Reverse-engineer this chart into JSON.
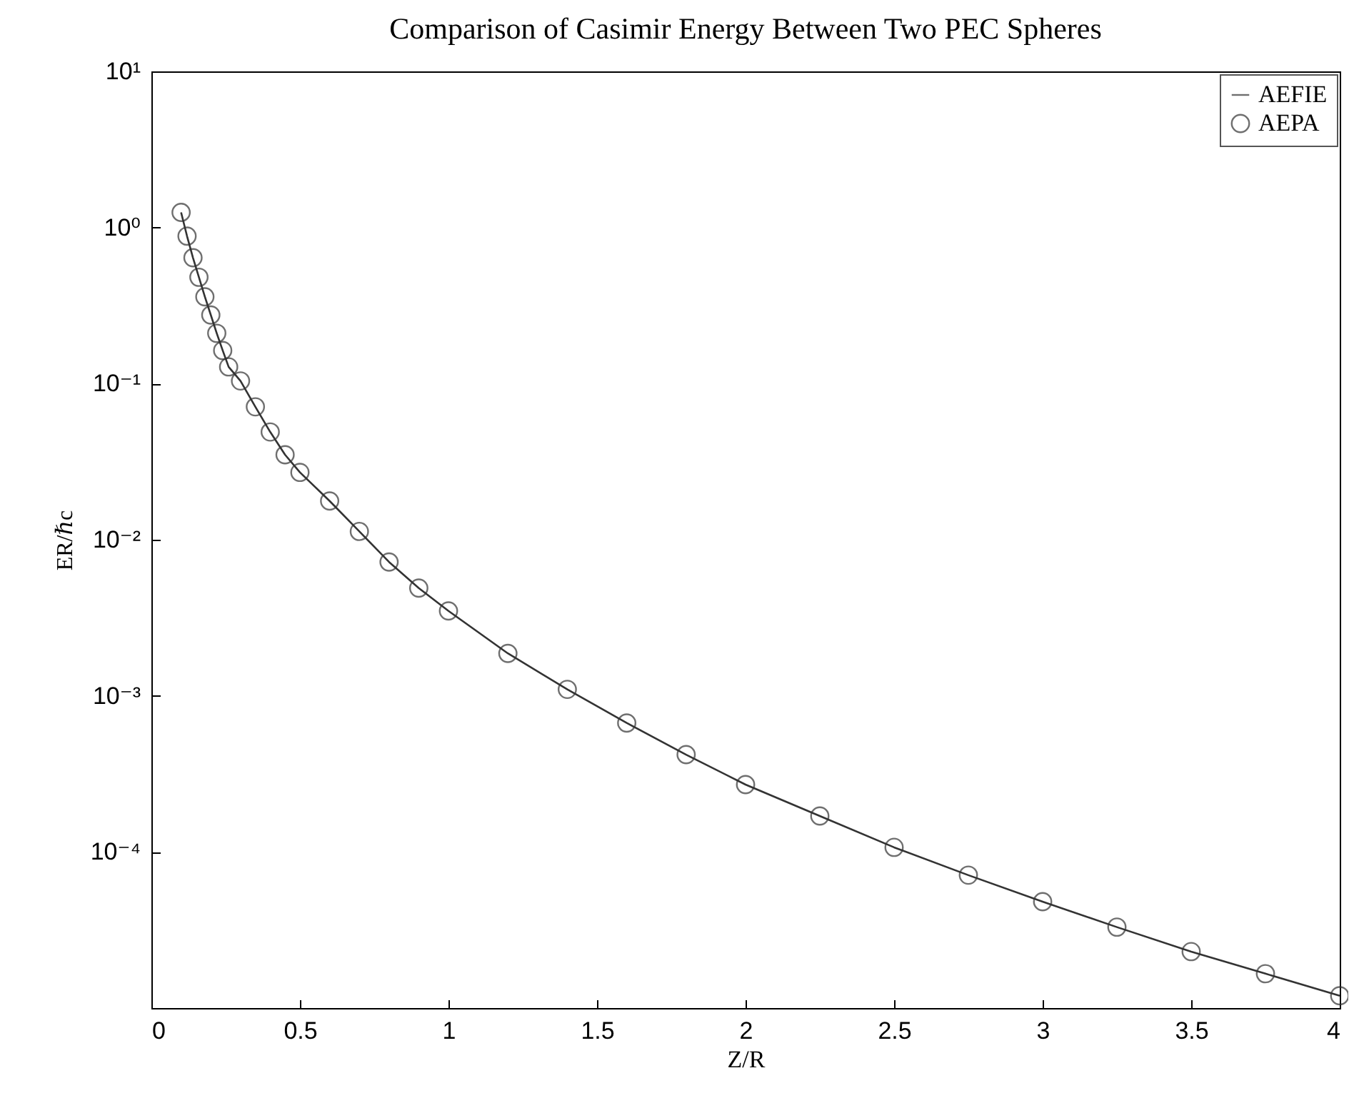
{
  "chart_data": {
    "type": "line",
    "title": "Comparison of Casimir Energy Between Two PEC Spheres",
    "xlabel": "Z/R",
    "ylabel": "ER/ℏc",
    "log": "y",
    "legend": "top right",
    "xlim": [
      0,
      4
    ],
    "xticks": [
      0,
      0.5,
      1,
      1.5,
      2,
      2.5,
      3,
      3.5,
      4
    ],
    "ylim": [
      1e-05,
      10
    ],
    "yticks": [
      {
        "value": 10,
        "label": "10¹"
      },
      {
        "value": 1,
        "label": "10⁰"
      },
      {
        "value": 0.1,
        "label": "10⁻¹"
      },
      {
        "value": 0.01,
        "label": "10⁻²"
      },
      {
        "value": 0.001,
        "label": "10⁻³"
      },
      {
        "value": 0.0001,
        "label": "10⁻⁴"
      }
    ],
    "series": [
      {
        "name": "AEFIE",
        "color": "#333333",
        "line_style": "solid",
        "x": [
          0.1,
          0.12,
          0.14,
          0.16,
          0.18,
          0.2,
          0.22,
          0.24,
          0.26,
          0.3,
          0.35,
          0.4,
          0.45,
          0.5,
          0.6,
          0.7,
          0.8,
          0.9,
          1.0,
          1.2,
          1.4,
          1.6,
          1.8,
          2.0,
          2.25,
          2.5,
          2.75,
          3.0,
          3.25,
          3.5,
          3.75,
          4.0
        ],
        "values": [
          1.25,
          0.88,
          0.64,
          0.48,
          0.36,
          0.275,
          0.21,
          0.163,
          0.128,
          0.104,
          0.071,
          0.049,
          0.035,
          0.027,
          0.0177,
          0.0113,
          0.0072,
          0.0049,
          0.0035,
          0.00187,
          0.0011,
          0.00067,
          0.00042,
          0.00027,
          0.00017,
          0.000107,
          7.1e-05,
          4.8e-05,
          3.3e-05,
          2.3e-05,
          1.66e-05,
          1.2e-05
        ]
      },
      {
        "name": "AEPA",
        "type": "scatter",
        "color": "#333333",
        "marker": "circle",
        "x": [
          0.1,
          0.12,
          0.14,
          0.16,
          0.18,
          0.2,
          0.22,
          0.24,
          0.26,
          0.3,
          0.35,
          0.4,
          0.45,
          0.5,
          0.6,
          0.7,
          0.8,
          0.9,
          1.0,
          1.2,
          1.4,
          1.6,
          1.8,
          2.0,
          2.25,
          2.5,
          2.75,
          3.0,
          3.25,
          3.5,
          3.75,
          4.0
        ],
        "values": [
          1.25,
          0.88,
          0.64,
          0.48,
          0.36,
          0.275,
          0.21,
          0.163,
          0.128,
          0.104,
          0.071,
          0.049,
          0.035,
          0.027,
          0.0177,
          0.0113,
          0.0072,
          0.0049,
          0.0035,
          0.00187,
          0.0011,
          0.00067,
          0.00042,
          0.00027,
          0.00017,
          0.000107,
          7.1e-05,
          4.8e-05,
          3.3e-05,
          2.3e-05,
          1.66e-05,
          1.2e-05
        ]
      }
    ]
  }
}
